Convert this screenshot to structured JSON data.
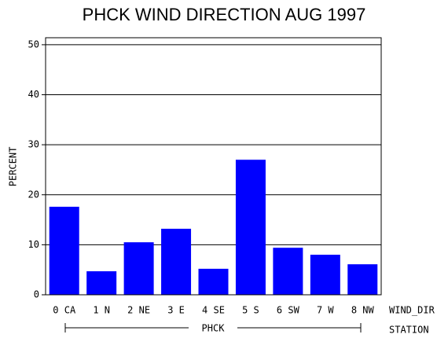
{
  "chart_data": {
    "type": "bar",
    "title": "PHCK WIND DIRECTION AUG 1997",
    "y_label": "PERCENT",
    "x_label": "WIND_DIR",
    "group_axis_label": "STATION",
    "group": "PHCK",
    "categories": [
      "0 CA",
      "1 N",
      "2 NE",
      "3 E",
      "4 SE",
      "5 S",
      "6 SW",
      "7 W",
      "8 NW"
    ],
    "values": [
      17.6,
      4.7,
      10.5,
      13.2,
      5.2,
      27.0,
      9.4,
      8.0,
      6.1
    ],
    "color": "#0000ff",
    "ylim": [
      0,
      51.4
    ],
    "yticks": [
      0,
      10,
      20,
      30,
      40,
      50
    ],
    "grid": true
  }
}
